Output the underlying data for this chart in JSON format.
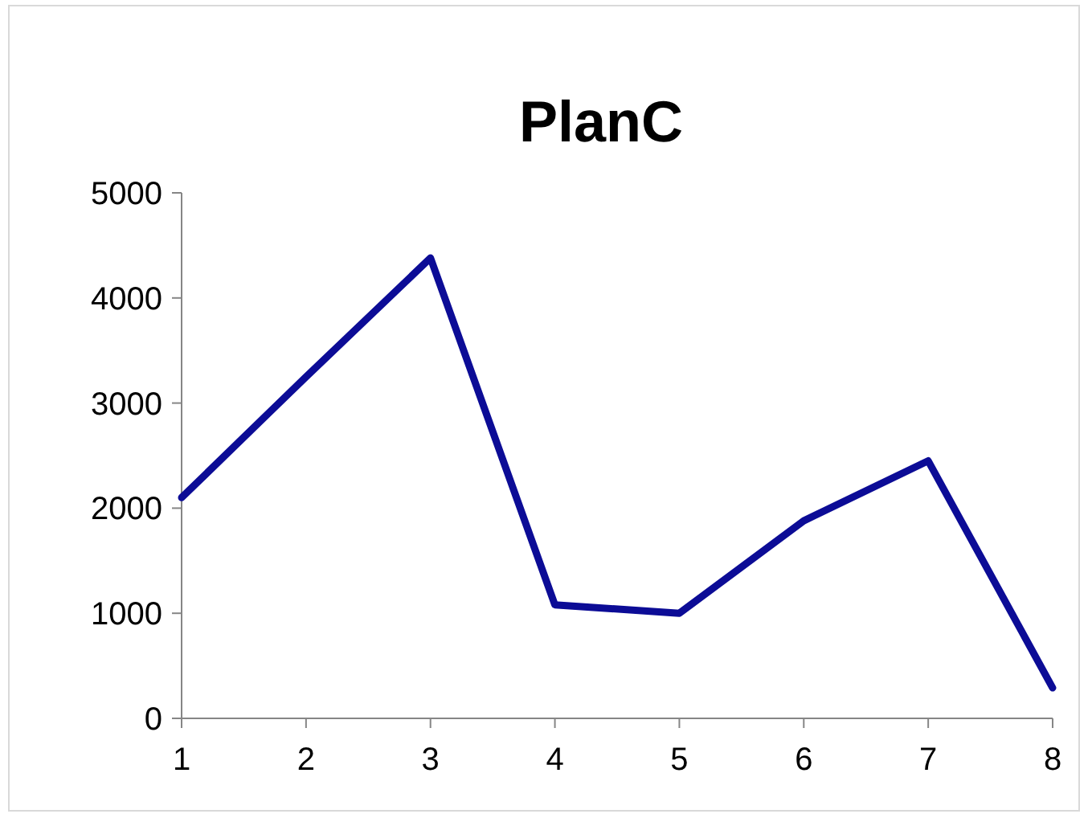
{
  "chart_data": {
    "type": "line",
    "title": "PlanC",
    "x": [
      1,
      2,
      3,
      4,
      5,
      6,
      7,
      8
    ],
    "series": [
      {
        "color": "#0c0c96",
        "values": [
          2100,
          3250,
          4380,
          1080,
          1000,
          1880,
          2450,
          290
        ]
      }
    ],
    "xlim": [
      1,
      8
    ],
    "xticks": [
      1,
      2,
      3,
      4,
      5,
      6,
      7,
      8
    ],
    "ylim": [
      0,
      5000
    ],
    "yticks": [
      0,
      1000,
      2000,
      3000,
      4000,
      5000
    ],
    "marker": "none",
    "line_style": "solid"
  }
}
